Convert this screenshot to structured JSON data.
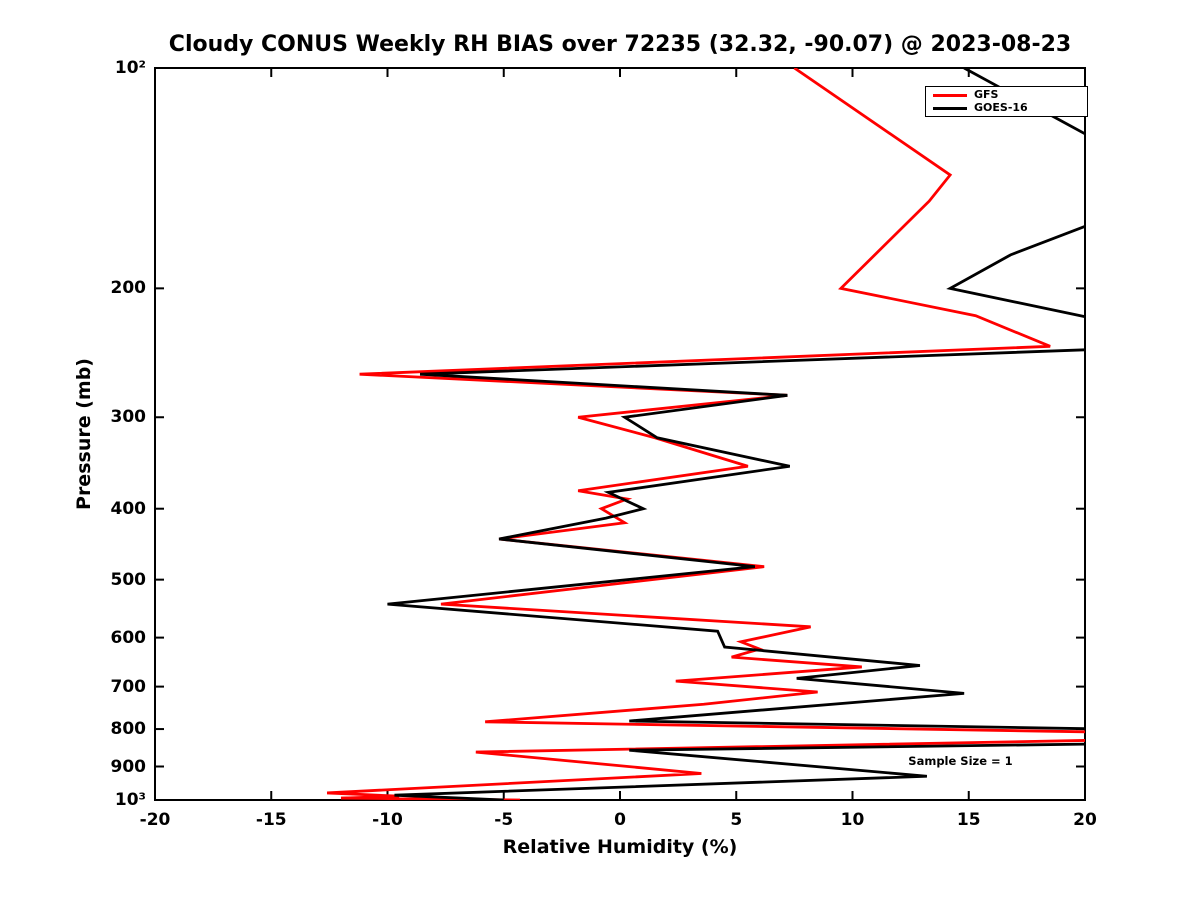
{
  "chart_data": {
    "type": "line",
    "title": "Cloudy CONUS Weekly RH BIAS over 72235 (32.32, -90.07) @ 2023-08-23",
    "xlabel": "Relative Humidity (%)",
    "ylabel": "Pressure (mb)",
    "xlim": [
      -20,
      20
    ],
    "x_ticks": [
      -20,
      -15,
      -10,
      -5,
      0,
      5,
      10,
      15,
      20
    ],
    "y_scale": "log10",
    "y_axis_direction": "pressure increases downward",
    "ylim": [
      100,
      1000
    ],
    "y_ticks": [
      {
        "value": 100,
        "label": "10²"
      },
      {
        "value": 200,
        "label": "200"
      },
      {
        "value": 300,
        "label": "300"
      },
      {
        "value": 400,
        "label": "400"
      },
      {
        "value": 500,
        "label": "500"
      },
      {
        "value": 600,
        "label": "600"
      },
      {
        "value": 700,
        "label": "700"
      },
      {
        "value": 800,
        "label": "800"
      },
      {
        "value": 900,
        "label": "900"
      },
      {
        "value": 1000,
        "label": "10³"
      }
    ],
    "grid": false,
    "legend": {
      "position": "top-right-inside",
      "entries": [
        {
          "name": "GFS",
          "color": "#ff0000"
        },
        {
          "name": "GOES-16",
          "color": "#000000"
        }
      ]
    },
    "annotation": {
      "text": "Sample Size = 1",
      "rh": 12.4,
      "pressure": 885
    },
    "series_point_format": "[pressure_mb, rh_bias_percent]",
    "series": [
      {
        "name": "GFS",
        "color": "#ff0000",
        "points": [
          [
            100,
            7.5
          ],
          [
            140,
            14.2
          ],
          [
            152,
            13.3
          ],
          [
            200,
            9.5
          ],
          [
            218,
            15.3
          ],
          [
            240,
            18.5
          ],
          [
            262,
            -11.2
          ],
          [
            280,
            7.2
          ],
          [
            300,
            -1.8
          ],
          [
            320,
            1.5
          ],
          [
            350,
            5.5
          ],
          [
            378,
            -1.8
          ],
          [
            388,
            0.3
          ],
          [
            400,
            -0.8
          ],
          [
            418,
            0.2
          ],
          [
            440,
            -5.2
          ],
          [
            480,
            6.2
          ],
          [
            540,
            -7.7
          ],
          [
            580,
            8.2
          ],
          [
            608,
            5.2
          ],
          [
            622,
            6.0
          ],
          [
            638,
            4.8
          ],
          [
            658,
            10.4
          ],
          [
            688,
            2.4
          ],
          [
            712,
            8.5
          ],
          [
            740,
            3.6
          ],
          [
            782,
            -5.8
          ],
          [
            808,
            21
          ],
          [
            828,
            21
          ],
          [
            860,
            -6.2
          ],
          [
            920,
            3.5
          ],
          [
            978,
            -12.6
          ],
          [
            988,
            -9.5
          ],
          [
            994,
            -12.0
          ],
          [
            1000,
            -4.3
          ]
        ]
      },
      {
        "name": "GOES-16",
        "color": "#000000",
        "points": [
          [
            100,
            14.8
          ],
          [
            128,
            21
          ],
          [
            160,
            21
          ],
          [
            180,
            16.8
          ],
          [
            200,
            14.2
          ],
          [
            222,
            21
          ],
          [
            242,
            21
          ],
          [
            262,
            -8.6
          ],
          [
            280,
            7.2
          ],
          [
            300,
            0.2
          ],
          [
            320,
            1.6
          ],
          [
            350,
            7.3
          ],
          [
            380,
            -0.5
          ],
          [
            400,
            1.0
          ],
          [
            412,
            -0.6
          ],
          [
            440,
            -5.2
          ],
          [
            480,
            5.8
          ],
          [
            540,
            -10.0
          ],
          [
            588,
            4.2
          ],
          [
            618,
            4.5
          ],
          [
            655,
            12.9
          ],
          [
            682,
            7.6
          ],
          [
            715,
            14.8
          ],
          [
            780,
            0.4
          ],
          [
            800,
            21
          ],
          [
            838,
            21
          ],
          [
            855,
            0.4
          ],
          [
            928,
            13.2
          ],
          [
            985,
            -9.7
          ],
          [
            1000,
            -5.0
          ]
        ]
      }
    ]
  }
}
